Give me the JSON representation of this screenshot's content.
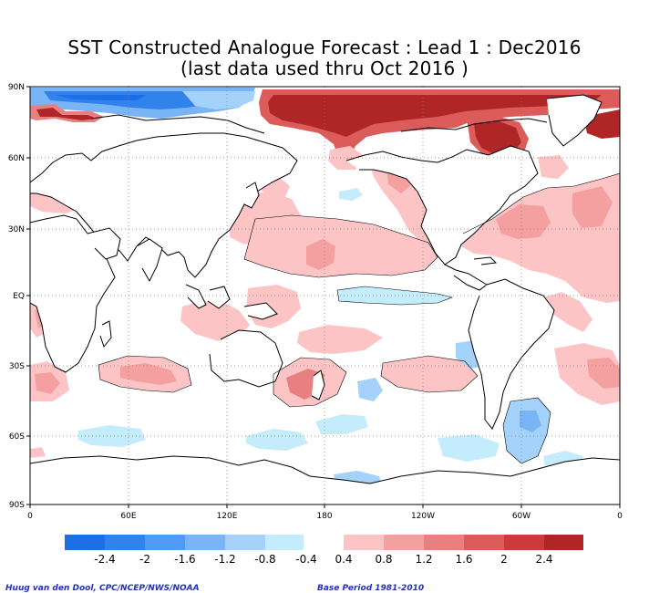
{
  "title": {
    "line1": "SST Constructed Analogue Forecast : Lead 1 : Dec2016",
    "line2": "(last data used thru Oct 2016 )"
  },
  "map": {
    "lat_labels": [
      "90N",
      "60N",
      "30N",
      "EQ",
      "30S",
      "60S",
      "90S"
    ],
    "lon_labels": [
      "0",
      "60E",
      "120E",
      "180",
      "120W",
      "60W",
      "0"
    ],
    "grid": "dotted"
  },
  "colorbar": {
    "labels": [
      "-2.4",
      "-2",
      "-1.6",
      "-1.2",
      "-0.8",
      "-0.4",
      "0.4",
      "0.8",
      "1.2",
      "1.6",
      "2",
      "2.4"
    ],
    "colors": {
      "neg": [
        "#1e6ee6",
        "#3282ec",
        "#4f9af2",
        "#78b4f6",
        "#a4d2fa",
        "#c4ecfc"
      ],
      "pos": [
        "#fcc4c4",
        "#f4a0a0",
        "#e88080",
        "#dc5c5c",
        "#cc3a3a",
        "#b02626"
      ]
    }
  },
  "footer": {
    "credit": "Huug van den Dool, CPC/NCEP/NWS/NOAA",
    "base_period": "Base Period 1981-2010"
  }
}
